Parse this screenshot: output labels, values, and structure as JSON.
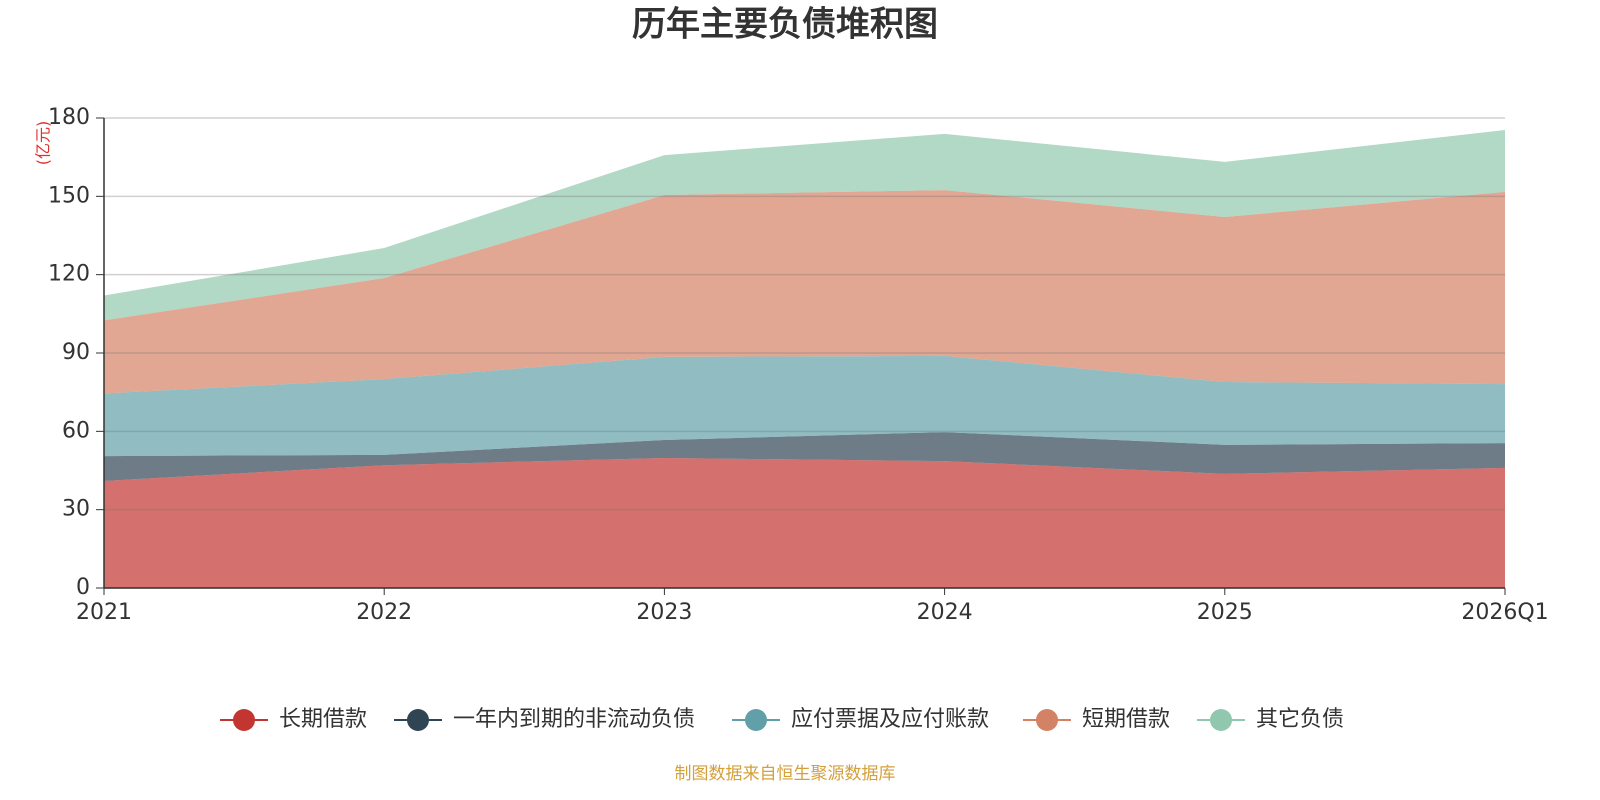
{
  "chart_data": {
    "type": "stacked-area",
    "title": "历年主要负债堆积图",
    "y_unit": "(亿元)",
    "source": "制图数据来自恒生聚源数据库",
    "categories": [
      "2021",
      "2022",
      "2023",
      "2024",
      "2025",
      "2026Q1"
    ],
    "series": [
      {
        "name": "长期借款",
        "color": "#c23531",
        "values": [
          41,
          47,
          49.8,
          48.6,
          43.7,
          46
        ]
      },
      {
        "name": "一年内到期的非流动负债",
        "color": "#2f4554",
        "values": [
          9.5,
          4,
          6.9,
          11.1,
          11.1,
          9.5
        ]
      },
      {
        "name": "应付票据及应付账款",
        "color": "#61a0a8",
        "values": [
          24,
          29,
          31.8,
          29.2,
          24.1,
          22.6
        ]
      },
      {
        "name": "短期借款",
        "color": "#d48265",
        "values": [
          28,
          38.7,
          62,
          63.5,
          63.2,
          73.6
        ]
      },
      {
        "name": "其它负债",
        "color": "#91c7ae",
        "values": [
          9.5,
          11.5,
          15.3,
          21.5,
          21.1,
          23.7
        ]
      }
    ],
    "ylim": [
      0,
      180
    ],
    "yticks": [
      0,
      30,
      60,
      90,
      120,
      150,
      180
    ],
    "grid": true
  }
}
